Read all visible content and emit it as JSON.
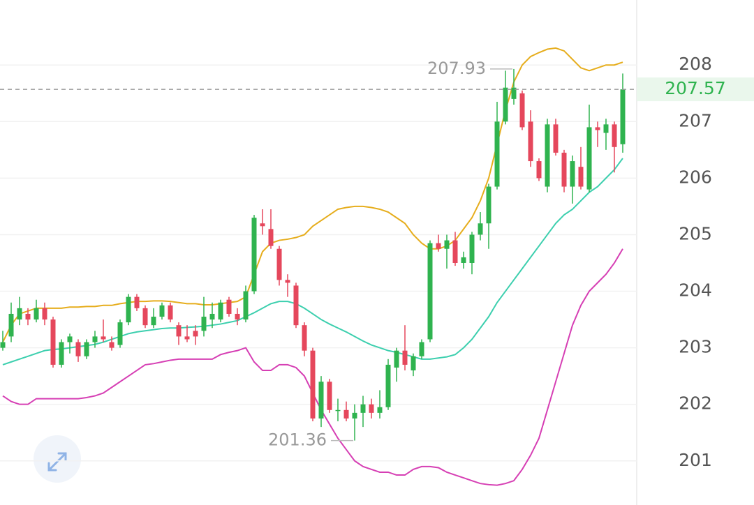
{
  "chart_data": {
    "type": "candlestick",
    "ylim": [
      200.22,
      209.15
    ],
    "yticks": [
      201,
      202,
      203,
      204,
      205,
      206,
      207,
      208
    ],
    "grid": true,
    "up_color": "#2fb34f",
    "down_color": "#e5475c",
    "open": [
      203.0,
      203.2,
      203.5,
      203.6,
      203.5,
      203.7,
      203.5,
      202.7,
      203.1,
      203.1,
      202.85,
      203.1,
      203.2,
      203.1,
      203.05,
      203.45,
      203.9,
      203.7,
      203.4,
      203.55,
      203.75,
      203.4,
      203.2,
      203.3,
      203.3,
      203.5,
      203.5,
      203.85,
      203.6,
      203.5,
      204.0,
      205.2,
      205.1,
      204.75,
      204.2,
      204.1,
      203.4,
      202.95,
      201.75,
      202.4,
      201.9,
      201.9,
      201.75,
      201.85,
      202.0,
      201.85,
      201.95,
      202.65,
      202.95,
      202.6,
      202.85,
      203.15,
      204.85,
      204.75,
      204.9,
      204.5,
      204.5,
      205.0,
      205.2,
      205.85,
      207.0,
      207.4,
      207.5,
      207.0,
      206.3,
      205.85,
      206.95,
      206.45,
      205.85,
      206.2,
      205.8,
      206.9,
      206.8,
      206.95,
      206.6
    ],
    "high": [
      203.3,
      203.8,
      203.9,
      203.7,
      203.85,
      203.8,
      203.55,
      203.15,
      203.25,
      203.15,
      203.15,
      203.3,
      203.5,
      203.2,
      203.5,
      203.95,
      203.95,
      203.75,
      203.7,
      203.8,
      203.8,
      203.45,
      203.4,
      203.4,
      203.9,
      203.8,
      203.85,
      203.9,
      203.7,
      204.1,
      205.35,
      205.45,
      205.45,
      204.8,
      204.3,
      204.15,
      203.45,
      203.0,
      202.5,
      202.45,
      202.1,
      202.05,
      202.0,
      202.15,
      202.1,
      202.25,
      202.8,
      203.0,
      203.4,
      202.9,
      203.15,
      204.9,
      205.0,
      205.0,
      205.05,
      204.7,
      205.05,
      205.4,
      205.9,
      207.35,
      207.9,
      207.93,
      207.55,
      207.2,
      206.35,
      207.05,
      207.05,
      206.5,
      206.4,
      206.55,
      207.3,
      207.0,
      207.05,
      207.0,
      207.85
    ],
    "low": [
      202.95,
      203.1,
      203.4,
      203.4,
      203.45,
      203.4,
      202.65,
      202.65,
      202.9,
      202.75,
      202.8,
      203.0,
      203.1,
      202.95,
      203.0,
      203.4,
      203.65,
      203.35,
      203.35,
      203.5,
      203.45,
      203.05,
      203.1,
      203.05,
      203.2,
      203.35,
      203.45,
      203.55,
      203.4,
      203.45,
      203.95,
      205.0,
      204.75,
      204.1,
      203.9,
      203.35,
      202.85,
      201.7,
      201.6,
      201.85,
      201.7,
      201.7,
      201.36,
      201.6,
      201.75,
      201.75,
      201.9,
      202.4,
      202.6,
      202.5,
      202.8,
      203.1,
      204.7,
      204.4,
      204.45,
      204.4,
      204.3,
      204.9,
      204.75,
      205.8,
      206.95,
      207.3,
      206.85,
      206.2,
      205.95,
      205.75,
      206.4,
      205.75,
      205.55,
      205.8,
      205.75,
      206.55,
      206.5,
      206.1,
      206.45
    ],
    "close": [
      203.1,
      203.6,
      203.7,
      203.5,
      203.7,
      203.5,
      202.7,
      203.1,
      203.2,
      202.85,
      203.1,
      203.2,
      203.15,
      203.0,
      203.45,
      203.9,
      203.7,
      203.4,
      203.55,
      203.75,
      203.5,
      203.2,
      203.15,
      203.2,
      203.55,
      203.6,
      203.8,
      203.6,
      203.5,
      204.0,
      205.3,
      205.15,
      204.8,
      204.2,
      204.15,
      203.4,
      202.95,
      201.75,
      202.4,
      201.9,
      201.9,
      201.75,
      201.85,
      202.0,
      201.85,
      201.95,
      202.7,
      202.95,
      202.7,
      202.85,
      203.1,
      204.85,
      204.75,
      204.9,
      204.5,
      204.6,
      205.0,
      205.2,
      205.85,
      207.0,
      207.6,
      207.6,
      206.9,
      206.3,
      206.0,
      206.95,
      206.45,
      205.85,
      206.3,
      205.85,
      206.9,
      206.85,
      206.95,
      206.55,
      207.57
    ],
    "lines": [
      {
        "color": "#e6ad1c",
        "values": [
          203.1,
          203.4,
          203.6,
          203.65,
          203.7,
          203.7,
          203.7,
          203.7,
          203.72,
          203.72,
          203.73,
          203.73,
          203.75,
          203.75,
          203.78,
          203.8,
          203.82,
          203.82,
          203.83,
          203.83,
          203.82,
          203.8,
          203.78,
          203.78,
          203.76,
          203.76,
          203.78,
          203.8,
          203.82,
          203.9,
          204.3,
          204.7,
          204.85,
          204.9,
          204.92,
          204.95,
          205.0,
          205.15,
          205.25,
          205.35,
          205.45,
          205.48,
          205.5,
          205.5,
          205.48,
          205.45,
          205.4,
          205.3,
          205.2,
          205.0,
          204.85,
          204.75,
          204.75,
          204.8,
          204.9,
          205.1,
          205.3,
          205.6,
          206.0,
          206.6,
          207.2,
          207.7,
          208.0,
          208.15,
          208.22,
          208.28,
          208.3,
          208.25,
          208.1,
          207.95,
          207.9,
          207.95,
          208.0,
          208.0,
          208.05
        ]
      },
      {
        "color": "#3ccfae",
        "values": [
          202.7,
          202.75,
          202.8,
          202.85,
          202.9,
          202.95,
          202.97,
          202.98,
          203.0,
          203.02,
          203.04,
          203.06,
          203.1,
          203.15,
          203.2,
          203.25,
          203.28,
          203.3,
          203.32,
          203.34,
          203.35,
          203.35,
          203.36,
          203.37,
          203.38,
          203.4,
          203.42,
          203.45,
          203.48,
          203.55,
          203.62,
          203.7,
          203.78,
          203.82,
          203.82,
          203.78,
          203.7,
          203.6,
          203.5,
          203.42,
          203.35,
          203.28,
          203.2,
          203.12,
          203.05,
          203.0,
          202.95,
          202.92,
          202.88,
          202.84,
          202.8,
          202.8,
          202.82,
          202.84,
          202.88,
          203.0,
          203.15,
          203.35,
          203.55,
          203.8,
          204.0,
          204.2,
          204.4,
          204.6,
          204.8,
          205.0,
          205.2,
          205.35,
          205.45,
          205.6,
          205.75,
          205.85,
          206.0,
          206.15,
          206.35
        ]
      },
      {
        "color": "#d63fb4",
        "values": [
          202.15,
          202.05,
          202.0,
          202.0,
          202.1,
          202.1,
          202.1,
          202.1,
          202.1,
          202.1,
          202.12,
          202.15,
          202.2,
          202.3,
          202.4,
          202.5,
          202.6,
          202.7,
          202.72,
          202.75,
          202.78,
          202.8,
          202.8,
          202.8,
          202.8,
          202.8,
          202.88,
          202.92,
          202.95,
          203.0,
          202.75,
          202.6,
          202.6,
          202.7,
          202.7,
          202.65,
          202.5,
          202.2,
          201.9,
          201.65,
          201.4,
          201.2,
          201.0,
          200.9,
          200.85,
          200.8,
          200.8,
          200.75,
          200.75,
          200.85,
          200.9,
          200.9,
          200.88,
          200.8,
          200.75,
          200.7,
          200.65,
          200.6,
          200.58,
          200.57,
          200.6,
          200.65,
          200.85,
          201.1,
          201.4,
          201.9,
          202.4,
          202.9,
          203.4,
          203.75,
          204.0,
          204.15,
          204.3,
          204.5,
          204.75
        ]
      }
    ],
    "annotations": [
      {
        "index": 61,
        "value": 207.93
      },
      {
        "index": 42,
        "value": 201.36
      }
    ],
    "last_price": 207.57,
    "last_price_color": "#2fb34f"
  }
}
